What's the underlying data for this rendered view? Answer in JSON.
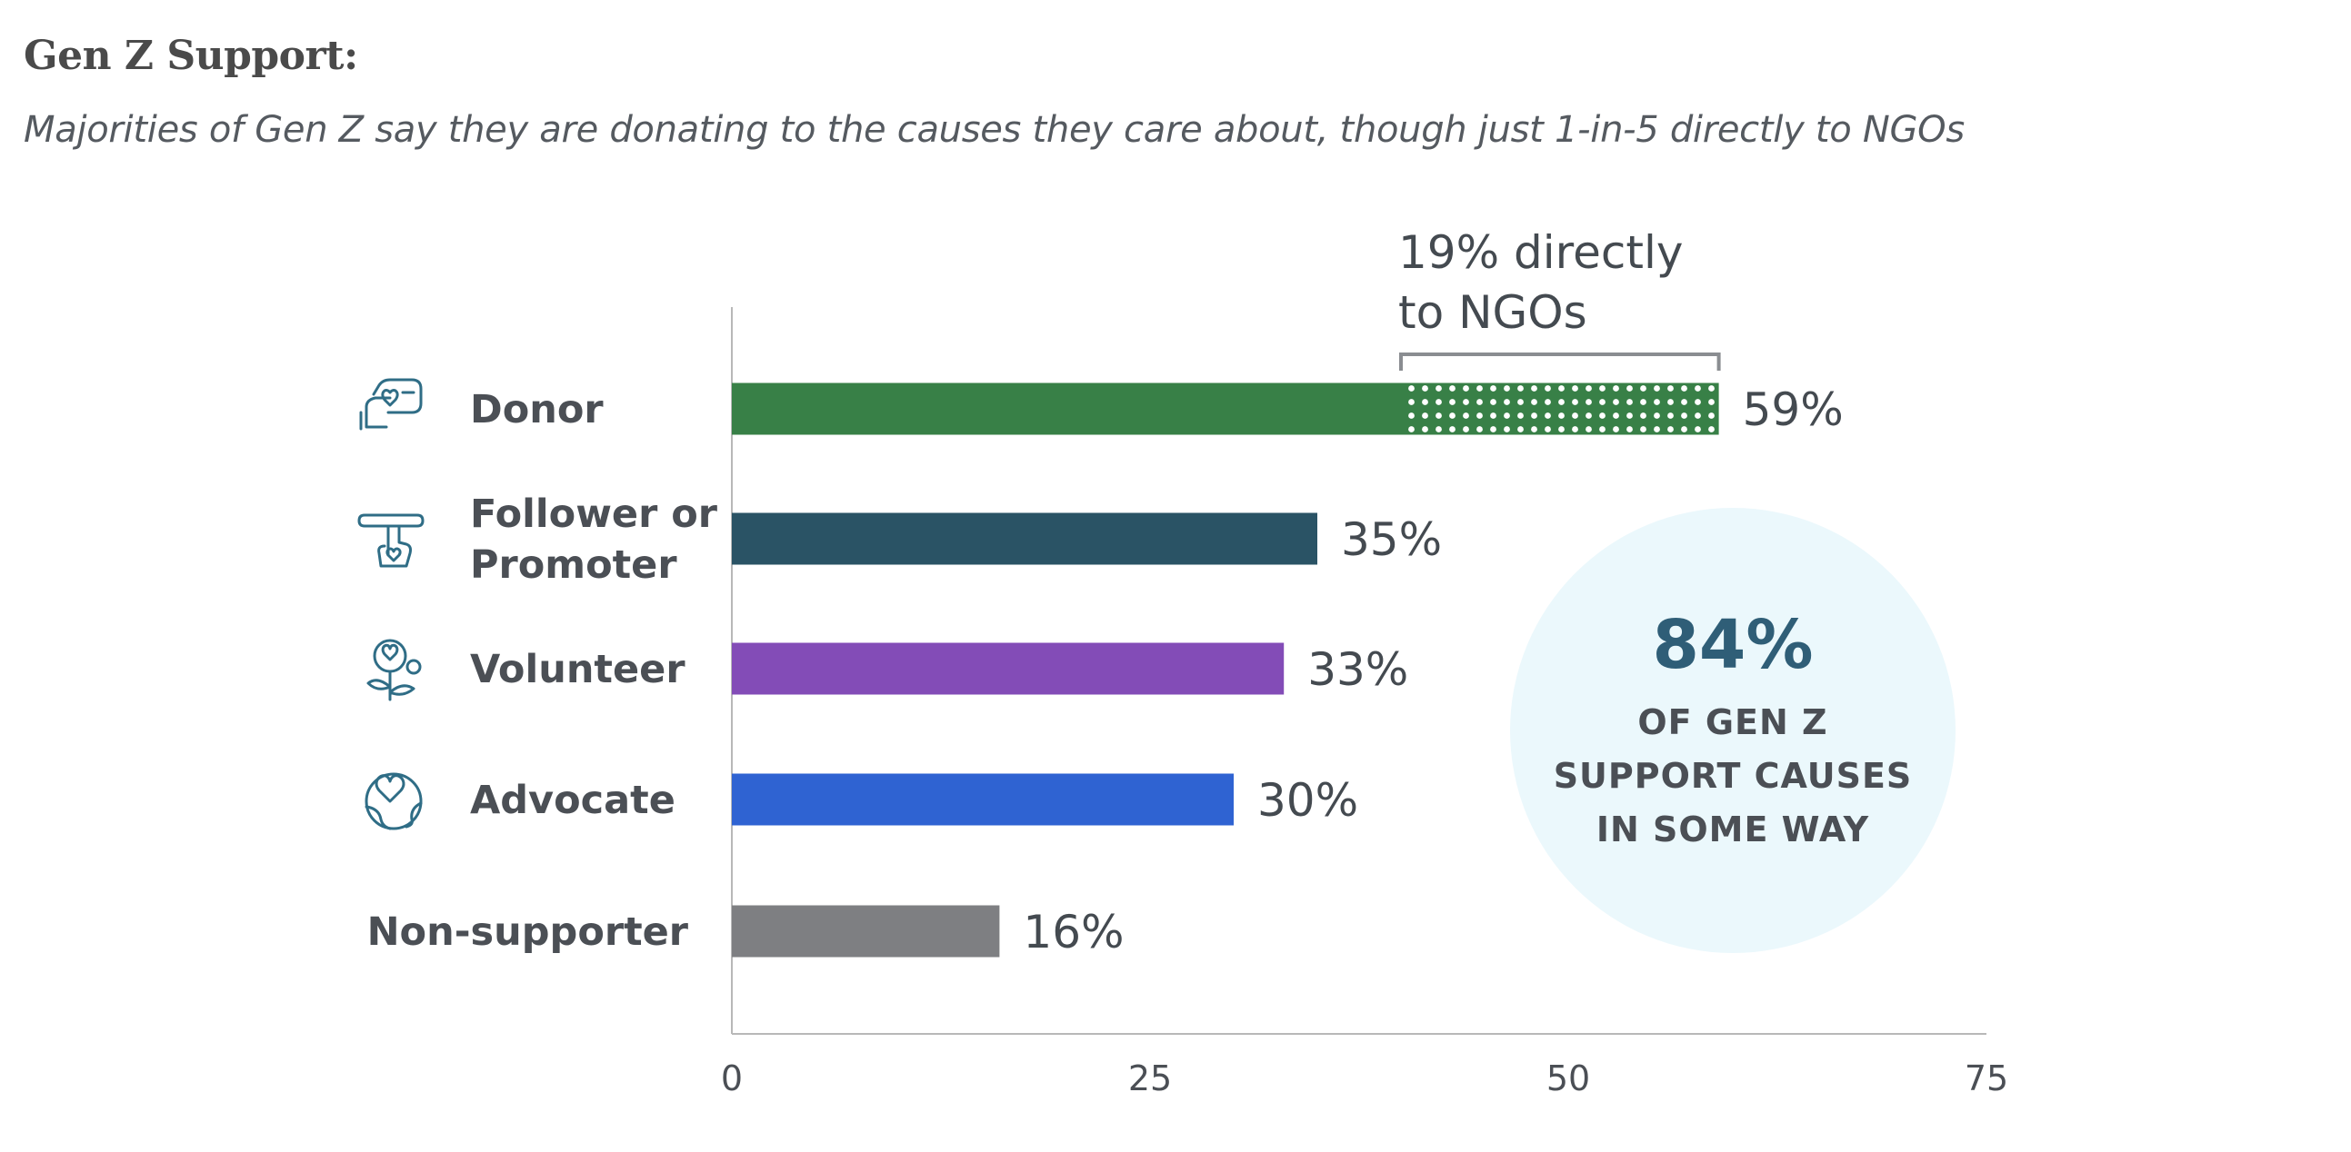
{
  "title": "Gen Z Support:",
  "subtitle": "Majorities of Gen Z say they are donating to the causes they care about, though just 1-in-5 directly to NGOs",
  "chart_data": {
    "type": "bar",
    "orientation": "horizontal",
    "categories": [
      "Donor",
      "Follower or Promoter",
      "Volunteer",
      "Advocate",
      "Non-supporter"
    ],
    "label_lines": [
      [
        "Donor"
      ],
      [
        "Follower or",
        "Promoter"
      ],
      [
        "Volunteer"
      ],
      [
        "Advocate"
      ],
      [
        "Non-supporter"
      ]
    ],
    "values": [
      59,
      35,
      33,
      30,
      16
    ],
    "value_labels": [
      "59%",
      "35%",
      "33%",
      "30%",
      "16%"
    ],
    "colors": [
      "#388047",
      "#2a5365",
      "#834cb7",
      "#2f63d2",
      "#7e7f82"
    ],
    "icons": [
      "donation-hand-icon",
      "pointing-hand-icon",
      "flower-heart-icon",
      "globe-heart-icon",
      ""
    ],
    "xlim": [
      0,
      75
    ],
    "xticks": [
      0,
      25,
      50,
      75
    ],
    "xtick_labels": [
      "0",
      "25",
      "50",
      "75"
    ],
    "grid": false,
    "segment": {
      "category": "Donor",
      "value": 19,
      "pattern": "dotted",
      "label_lines": [
        "19% directly",
        "to NGOs"
      ]
    },
    "callout": {
      "big": "84%",
      "lines": [
        "OF GEN Z",
        "SUPPORT CAUSES",
        "IN SOME WAY"
      ],
      "fill": "#ebf8fc"
    }
  }
}
